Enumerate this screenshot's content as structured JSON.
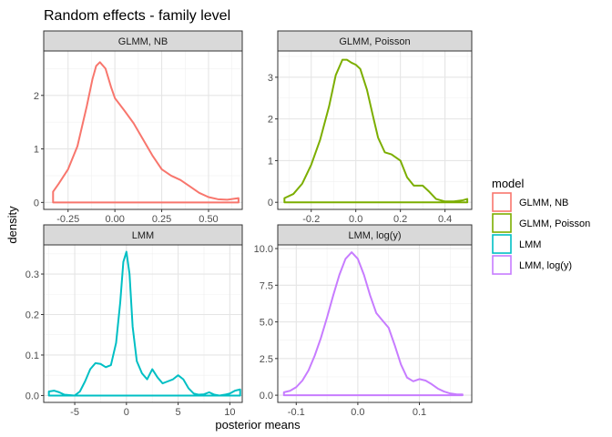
{
  "chart_data": {
    "type": "line",
    "title": "Random effects - family level",
    "xlabel": "posterior means",
    "ylabel": "density",
    "legend": {
      "title": "model",
      "position": "right",
      "entries": [
        {
          "name": "GLMM, NB",
          "color": "#F8766D"
        },
        {
          "name": "GLMM, Poisson",
          "color": "#7CAE00"
        },
        {
          "name": "LMM",
          "color": "#00BFC4"
        },
        {
          "name": "LMM, log(y)",
          "color": "#C77CFF"
        }
      ]
    },
    "grid": true,
    "panels": [
      {
        "strip": "GLMM, NB",
        "series_name": "GLMM, NB",
        "color": "#F8766D",
        "xlim": [
          -0.38,
          0.68
        ],
        "ylim": [
          -0.13,
          2.83
        ],
        "xticks": [
          -0.25,
          0,
          0.25,
          0.5
        ],
        "xtick_labels": [
          "-0.25",
          "0.00",
          "0.25",
          "0.50"
        ],
        "yticks": [
          0,
          1,
          2
        ],
        "ytick_labels": [
          "0",
          "1",
          "2"
        ],
        "x": [
          -0.33,
          -0.3,
          -0.25,
          -0.2,
          -0.15,
          -0.12,
          -0.1,
          -0.08,
          -0.05,
          -0.02,
          0.0,
          0.05,
          0.1,
          0.15,
          0.2,
          0.25,
          0.3,
          0.35,
          0.4,
          0.45,
          0.5,
          0.55,
          0.6,
          0.66
        ],
        "y": [
          0.2,
          0.35,
          0.62,
          1.05,
          1.8,
          2.3,
          2.55,
          2.62,
          2.5,
          2.15,
          1.95,
          1.72,
          1.48,
          1.18,
          0.88,
          0.62,
          0.5,
          0.42,
          0.3,
          0.18,
          0.1,
          0.06,
          0.05,
          0.08
        ]
      },
      {
        "strip": "GLMM, Poisson",
        "series_name": "GLMM, Poisson",
        "color": "#7CAE00",
        "xlim": [
          -0.35,
          0.52
        ],
        "ylim": [
          -0.17,
          3.63
        ],
        "xticks": [
          -0.2,
          0,
          0.2,
          0.4
        ],
        "xtick_labels": [
          "-0.2",
          "0.0",
          "0.2",
          "0.4"
        ],
        "yticks": [
          0,
          1,
          2,
          3
        ],
        "ytick_labels": [
          "0",
          "1",
          "2",
          "3"
        ],
        "x": [
          -0.32,
          -0.28,
          -0.24,
          -0.2,
          -0.16,
          -0.12,
          -0.09,
          -0.06,
          -0.04,
          -0.02,
          0.0,
          0.02,
          0.05,
          0.08,
          0.1,
          0.13,
          0.16,
          0.2,
          0.23,
          0.26,
          0.3,
          0.33,
          0.36,
          0.4,
          0.44,
          0.48,
          0.5
        ],
        "y": [
          0.1,
          0.2,
          0.45,
          0.9,
          1.5,
          2.3,
          3.05,
          3.42,
          3.42,
          3.35,
          3.3,
          3.2,
          2.7,
          2.0,
          1.55,
          1.2,
          1.15,
          1.0,
          0.6,
          0.4,
          0.4,
          0.25,
          0.08,
          0.02,
          0.02,
          0.05,
          0.08
        ]
      },
      {
        "strip": "LMM",
        "series_name": "LMM",
        "color": "#00BFC4",
        "xlim": [
          -8.0,
          11.2
        ],
        "ylim": [
          -0.017,
          0.372
        ],
        "xticks": [
          -5,
          0,
          5,
          10
        ],
        "xtick_labels": [
          "-5",
          "0",
          "5",
          "10"
        ],
        "yticks": [
          0,
          0.1,
          0.2,
          0.3
        ],
        "ytick_labels": [
          "0.0",
          "0.1",
          "0.2",
          "0.3"
        ],
        "x": [
          -7.5,
          -7.0,
          -6.5,
          -6.0,
          -5.0,
          -4.5,
          -4.0,
          -3.5,
          -3.0,
          -2.5,
          -2.0,
          -1.5,
          -1.0,
          -0.6,
          -0.3,
          0.0,
          0.3,
          0.6,
          1.0,
          1.5,
          2.0,
          2.5,
          3.0,
          3.5,
          4.0,
          4.5,
          5.0,
          5.5,
          6.0,
          6.5,
          7.0,
          7.5,
          8.0,
          8.5,
          9.0,
          9.5,
          10.0,
          10.5,
          11.0
        ],
        "y": [
          0.01,
          0.012,
          0.008,
          0.002,
          0.0,
          0.01,
          0.035,
          0.065,
          0.08,
          0.078,
          0.07,
          0.075,
          0.13,
          0.23,
          0.33,
          0.355,
          0.3,
          0.17,
          0.085,
          0.055,
          0.04,
          0.065,
          0.045,
          0.03,
          0.035,
          0.04,
          0.05,
          0.04,
          0.018,
          0.005,
          0.002,
          0.003,
          0.008,
          0.002,
          0.0,
          0.002,
          0.005,
          0.012,
          0.015
        ]
      },
      {
        "strip": "LMM, log(y)",
        "series_name": "LMM, log(y)",
        "color": "#C77CFF",
        "xlim": [
          -0.13,
          0.185
        ],
        "ylim": [
          -0.49,
          10.25
        ],
        "xticks": [
          -0.1,
          0,
          0.1
        ],
        "xtick_labels": [
          "-0.1",
          "0.0",
          "0.1"
        ],
        "yticks": [
          0,
          2.5,
          5,
          7.5,
          10
        ],
        "ytick_labels": [
          "0.0",
          "2.5",
          "5.0",
          "7.5",
          "10.0"
        ],
        "x": [
          -0.12,
          -0.11,
          -0.1,
          -0.09,
          -0.08,
          -0.07,
          -0.06,
          -0.05,
          -0.04,
          -0.03,
          -0.02,
          -0.01,
          0.0,
          0.01,
          0.02,
          0.03,
          0.04,
          0.05,
          0.06,
          0.07,
          0.08,
          0.09,
          0.1,
          0.11,
          0.12,
          0.13,
          0.14,
          0.15,
          0.16,
          0.17
        ],
        "y": [
          0.2,
          0.3,
          0.55,
          1.0,
          1.7,
          2.7,
          3.9,
          5.3,
          6.8,
          8.2,
          9.3,
          9.75,
          9.3,
          8.2,
          6.8,
          5.6,
          5.1,
          4.6,
          3.4,
          2.1,
          1.2,
          0.95,
          1.1,
          1.0,
          0.75,
          0.45,
          0.25,
          0.12,
          0.06,
          0.05
        ]
      }
    ]
  }
}
